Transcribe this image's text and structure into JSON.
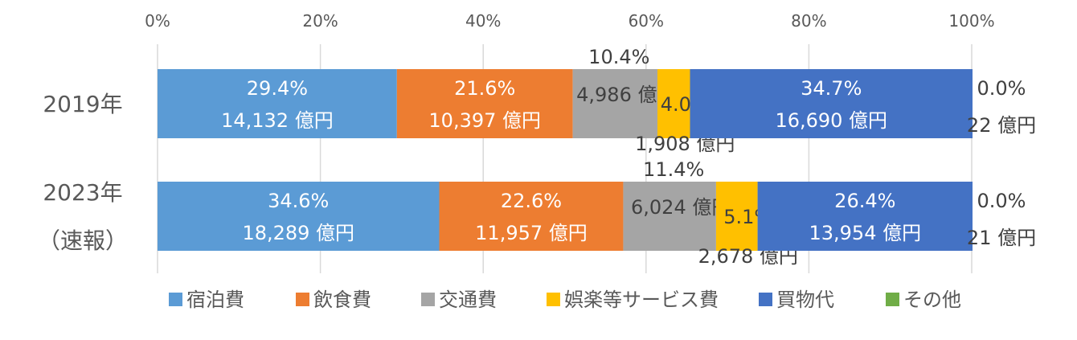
{
  "chart_data": {
    "type": "bar",
    "orientation": "horizontal",
    "stacking": "percent",
    "categories": [
      {
        "lines": [
          "2019年"
        ]
      },
      {
        "lines": [
          "2023年",
          "（速報）"
        ]
      }
    ],
    "x_ticks": [
      "0%",
      "20%",
      "40%",
      "60%",
      "80%",
      "100%"
    ],
    "xlim": [
      0,
      100
    ],
    "grid": true,
    "legend_position": "bottom",
    "series": [
      {
        "name": "宿泊費",
        "color": "#5B9BD5",
        "label_color": "#ffffff",
        "label_pos": "inside",
        "values": [
          29.4,
          34.6
        ],
        "pct_labels": [
          "29.4%",
          "34.6%"
        ],
        "amount_labels": [
          "14,132 億円",
          "18,289 億円"
        ]
      },
      {
        "name": "飲食費",
        "color": "#ED7D31",
        "label_color": "#ffffff",
        "label_pos": "inside",
        "values": [
          21.6,
          22.6
        ],
        "pct_labels": [
          "21.6%",
          "22.6%"
        ],
        "amount_labels": [
          "10,397 億円",
          "11,957 億円"
        ]
      },
      {
        "name": "交通費",
        "color": "#A5A5A5",
        "label_color": "#404040",
        "label_pos": "split-above",
        "values": [
          10.4,
          11.4
        ],
        "pct_labels": [
          "10.4%",
          "11.4%"
        ],
        "amount_labels": [
          "4,986 億円",
          "6,024 億円"
        ]
      },
      {
        "name": "娯楽等サービス費",
        "color": "#FFC000",
        "label_color": "#404040",
        "label_pos": "split-below",
        "values": [
          4.0,
          5.1
        ],
        "pct_labels": [
          "4.0%",
          "5.1%"
        ],
        "amount_labels": [
          "1,908 億円",
          "2,678 億円"
        ]
      },
      {
        "name": "買物代",
        "color": "#4472C4",
        "label_color": "#ffffff",
        "label_pos": "inside",
        "values": [
          34.7,
          26.4
        ],
        "pct_labels": [
          "34.7%",
          "26.4%"
        ],
        "amount_labels": [
          "16,690 億円",
          "13,954 億円"
        ]
      },
      {
        "name": "その他",
        "color": "#70AD47",
        "label_color": "#404040",
        "label_pos": "outside-right",
        "values": [
          0.0,
          0.0
        ],
        "pct_labels": [
          "0.0%",
          "0.0%"
        ],
        "amount_labels": [
          "22 億円",
          "21 億円"
        ]
      }
    ]
  }
}
